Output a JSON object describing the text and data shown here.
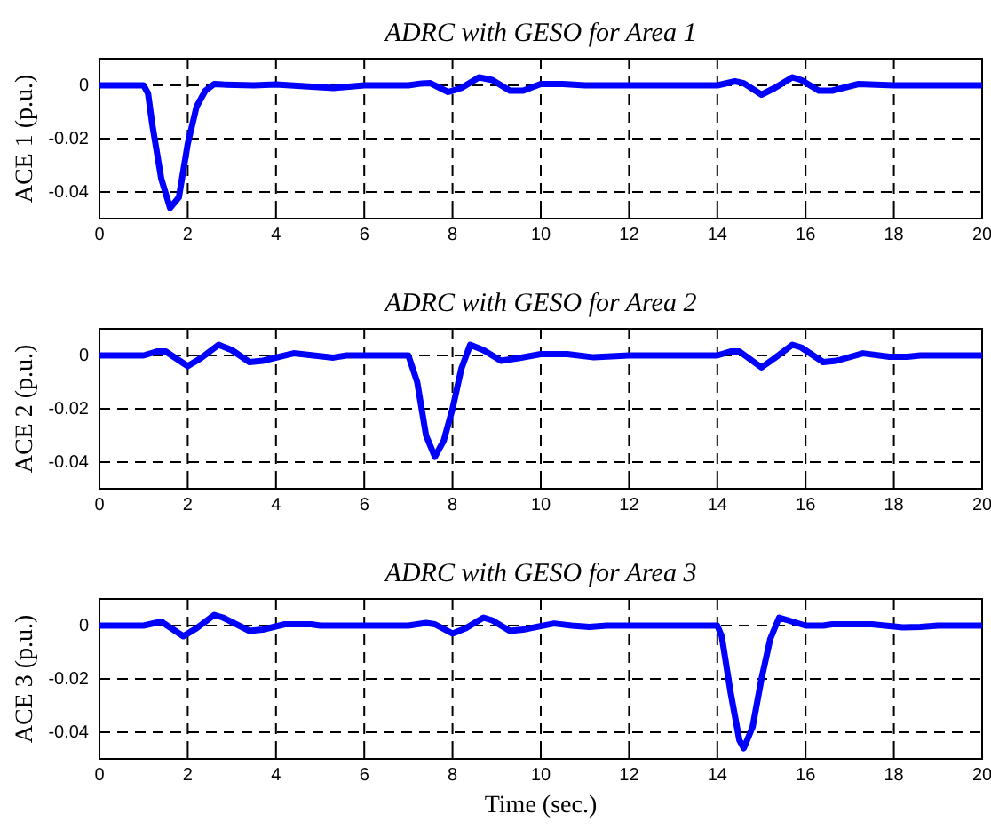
{
  "chart_data": [
    {
      "type": "line",
      "title": "ADRC with GESO for Area 1",
      "ylabel": "ACE 1 (p.u.)",
      "xlim": [
        0,
        20
      ],
      "xticks": [
        0,
        2,
        4,
        6,
        8,
        10,
        12,
        14,
        16,
        18,
        20
      ],
      "ylim": [
        -0.05,
        0.01
      ],
      "yticks": [
        0,
        -0.02,
        -0.04
      ],
      "grid": true,
      "series": [
        {
          "color": "#0000ff",
          "x": [
            0,
            1,
            1.1,
            1.2,
            1.4,
            1.6,
            1.8,
            2.0,
            2.2,
            2.4,
            2.6,
            2.8,
            3.5,
            4,
            5.3,
            6,
            7,
            7.3,
            7.5,
            7.9,
            8.2,
            8.6,
            8.9,
            9.3,
            9.6,
            10,
            10.5,
            11,
            14,
            14.4,
            14.6,
            15,
            15.3,
            15.7,
            15.9,
            16.3,
            16.6,
            17.2,
            18,
            20
          ],
          "values": [
            0,
            0,
            -0.003,
            -0.015,
            -0.035,
            -0.046,
            -0.042,
            -0.022,
            -0.008,
            -0.002,
            0.0005,
            0.0003,
            0,
            0.0003,
            -0.001,
            0,
            0,
            0.0007,
            0.0008,
            -0.0025,
            -0.001,
            0.003,
            0.002,
            -0.002,
            -0.002,
            0.0005,
            0.0005,
            0,
            0,
            0.0015,
            0.0008,
            -0.0035,
            -0.001,
            0.003,
            0.002,
            -0.002,
            -0.002,
            0.0005,
            0,
            0
          ]
        }
      ]
    },
    {
      "type": "line",
      "title": "ADRC with GESO for Area 2",
      "ylabel": "ACE 2 (p.u.)",
      "xlim": [
        0,
        20
      ],
      "xticks": [
        0,
        2,
        4,
        6,
        8,
        10,
        12,
        14,
        16,
        18,
        20
      ],
      "ylim": [
        -0.05,
        0.01
      ],
      "yticks": [
        0,
        -0.02,
        -0.04
      ],
      "grid": true,
      "series": [
        {
          "color": "#0000ff",
          "x": [
            0,
            1,
            1.3,
            1.5,
            2,
            2.3,
            2.7,
            3,
            3.4,
            3.7,
            4.4,
            5.3,
            5.6,
            7,
            7.2,
            7.4,
            7.6,
            7.8,
            8.0,
            8.2,
            8.4,
            8.7,
            9.1,
            9.5,
            10,
            10.6,
            11.2,
            12,
            14,
            14.3,
            14.5,
            15,
            15.3,
            15.7,
            15.9,
            16.4,
            16.7,
            17.3,
            17.9,
            18.3,
            18.6,
            20
          ],
          "values": [
            0,
            0,
            0.0015,
            0.0015,
            -0.004,
            -0.001,
            0.004,
            0.002,
            -0.0025,
            -0.002,
            0.0008,
            -0.0008,
            0,
            0,
            -0.01,
            -0.03,
            -0.038,
            -0.032,
            -0.02,
            -0.005,
            0.004,
            0.002,
            -0.002,
            -0.001,
            0.0005,
            0.0005,
            -0.0007,
            0,
            0,
            0.0015,
            0.0015,
            -0.0045,
            -0.001,
            0.004,
            0.003,
            -0.0025,
            -0.002,
            0.0008,
            -0.0005,
            -0.0005,
            0,
            0
          ]
        }
      ]
    },
    {
      "type": "line",
      "title": "ADRC with GESO for Area 3",
      "ylabel": "ACE 3 (p.u.)",
      "xlabel": "Time (sec.)",
      "xlim": [
        0,
        20
      ],
      "xticks": [
        0,
        2,
        4,
        6,
        8,
        10,
        12,
        14,
        16,
        18,
        20
      ],
      "ylim": [
        -0.05,
        0.01
      ],
      "yticks": [
        0,
        -0.02,
        -0.04
      ],
      "grid": true,
      "series": [
        {
          "color": "#0000ff",
          "x": [
            0,
            1,
            1.4,
            1.9,
            2.2,
            2.6,
            2.8,
            3.4,
            3.7,
            4.2,
            4.8,
            5,
            7,
            7.4,
            7.6,
            8,
            8.3,
            8.7,
            8.9,
            9.3,
            9.6,
            10.3,
            10.7,
            11.1,
            11.5,
            14,
            14.1,
            14.3,
            14.5,
            14.6,
            14.8,
            15.0,
            15.2,
            15.4,
            15.6,
            16,
            16.4,
            16.6,
            17.5,
            18.2,
            18.6,
            19,
            20
          ],
          "values": [
            0,
            0,
            0.0015,
            -0.004,
            -0.001,
            0.004,
            0.003,
            -0.002,
            -0.0015,
            0.0005,
            0.0005,
            0,
            0,
            0.001,
            0.0005,
            -0.003,
            -0.001,
            0.003,
            0.002,
            -0.002,
            -0.0015,
            0.0008,
            0,
            -0.0005,
            0,
            0,
            -0.004,
            -0.025,
            -0.043,
            -0.046,
            -0.038,
            -0.02,
            -0.005,
            0.003,
            0.002,
            0,
            0,
            0.0005,
            0.0005,
            -0.0007,
            -0.0005,
            0,
            0
          ]
        }
      ]
    }
  ]
}
